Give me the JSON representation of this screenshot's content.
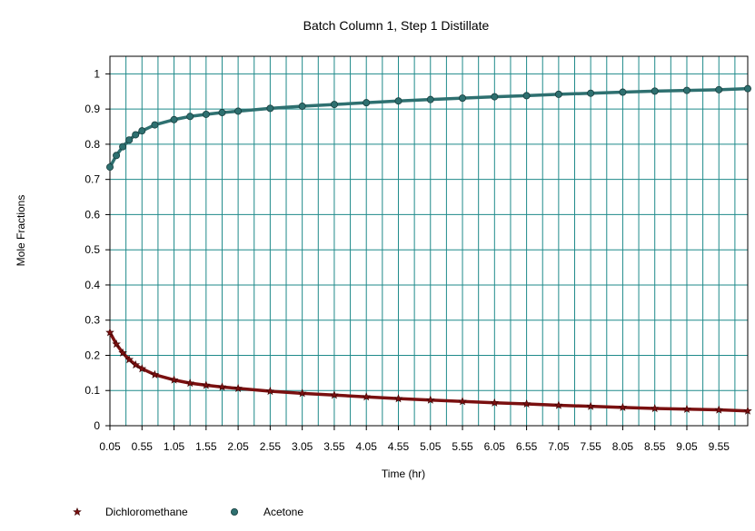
{
  "chart_data": {
    "type": "scatter",
    "title": "Batch Column 1, Step 1 Distillate",
    "xlabel": "Time (hr)",
    "ylabel": "Mole Fractions",
    "xlim": [
      0.05,
      10.0
    ],
    "ylim": [
      0,
      1.05
    ],
    "x_ticks": [
      "0.05",
      "0.55",
      "1.05",
      "1.55",
      "2.05",
      "2.55",
      "3.05",
      "3.55",
      "4.05",
      "4.55",
      "5.05",
      "5.55",
      "6.05",
      "6.55",
      "7.05",
      "7.55",
      "8.05",
      "8.55",
      "9.05",
      "9.55"
    ],
    "y_ticks": [
      "0",
      "0.1",
      "0.2",
      "0.3",
      "0.4",
      "0.5",
      "0.6",
      "0.7",
      "0.8",
      "0.9",
      "1"
    ],
    "grid": true,
    "legend_position": "bottom-left",
    "x": [
      0.05,
      0.15,
      0.25,
      0.35,
      0.45,
      0.55,
      0.75,
      1.05,
      1.3,
      1.55,
      1.8,
      2.05,
      2.55,
      3.05,
      3.55,
      4.05,
      4.55,
      5.05,
      5.55,
      6.05,
      6.55,
      7.05,
      7.55,
      8.05,
      8.55,
      9.05,
      9.55,
      10.0
    ],
    "series": [
      {
        "name": "Dichloromethane",
        "color": "#7a1010",
        "marker": "star",
        "values": [
          0.265,
          0.232,
          0.207,
          0.188,
          0.173,
          0.162,
          0.145,
          0.13,
          0.121,
          0.115,
          0.11,
          0.106,
          0.098,
          0.092,
          0.087,
          0.082,
          0.077,
          0.073,
          0.069,
          0.065,
          0.062,
          0.058,
          0.055,
          0.052,
          0.049,
          0.047,
          0.045,
          0.042
        ]
      },
      {
        "name": "Acetone",
        "color": "#2e7070",
        "marker": "circle",
        "values": [
          0.735,
          0.768,
          0.793,
          0.812,
          0.827,
          0.838,
          0.855,
          0.87,
          0.879,
          0.885,
          0.89,
          0.894,
          0.902,
          0.908,
          0.913,
          0.918,
          0.923,
          0.927,
          0.931,
          0.935,
          0.938,
          0.942,
          0.945,
          0.948,
          0.951,
          0.953,
          0.955,
          0.958
        ]
      }
    ]
  }
}
